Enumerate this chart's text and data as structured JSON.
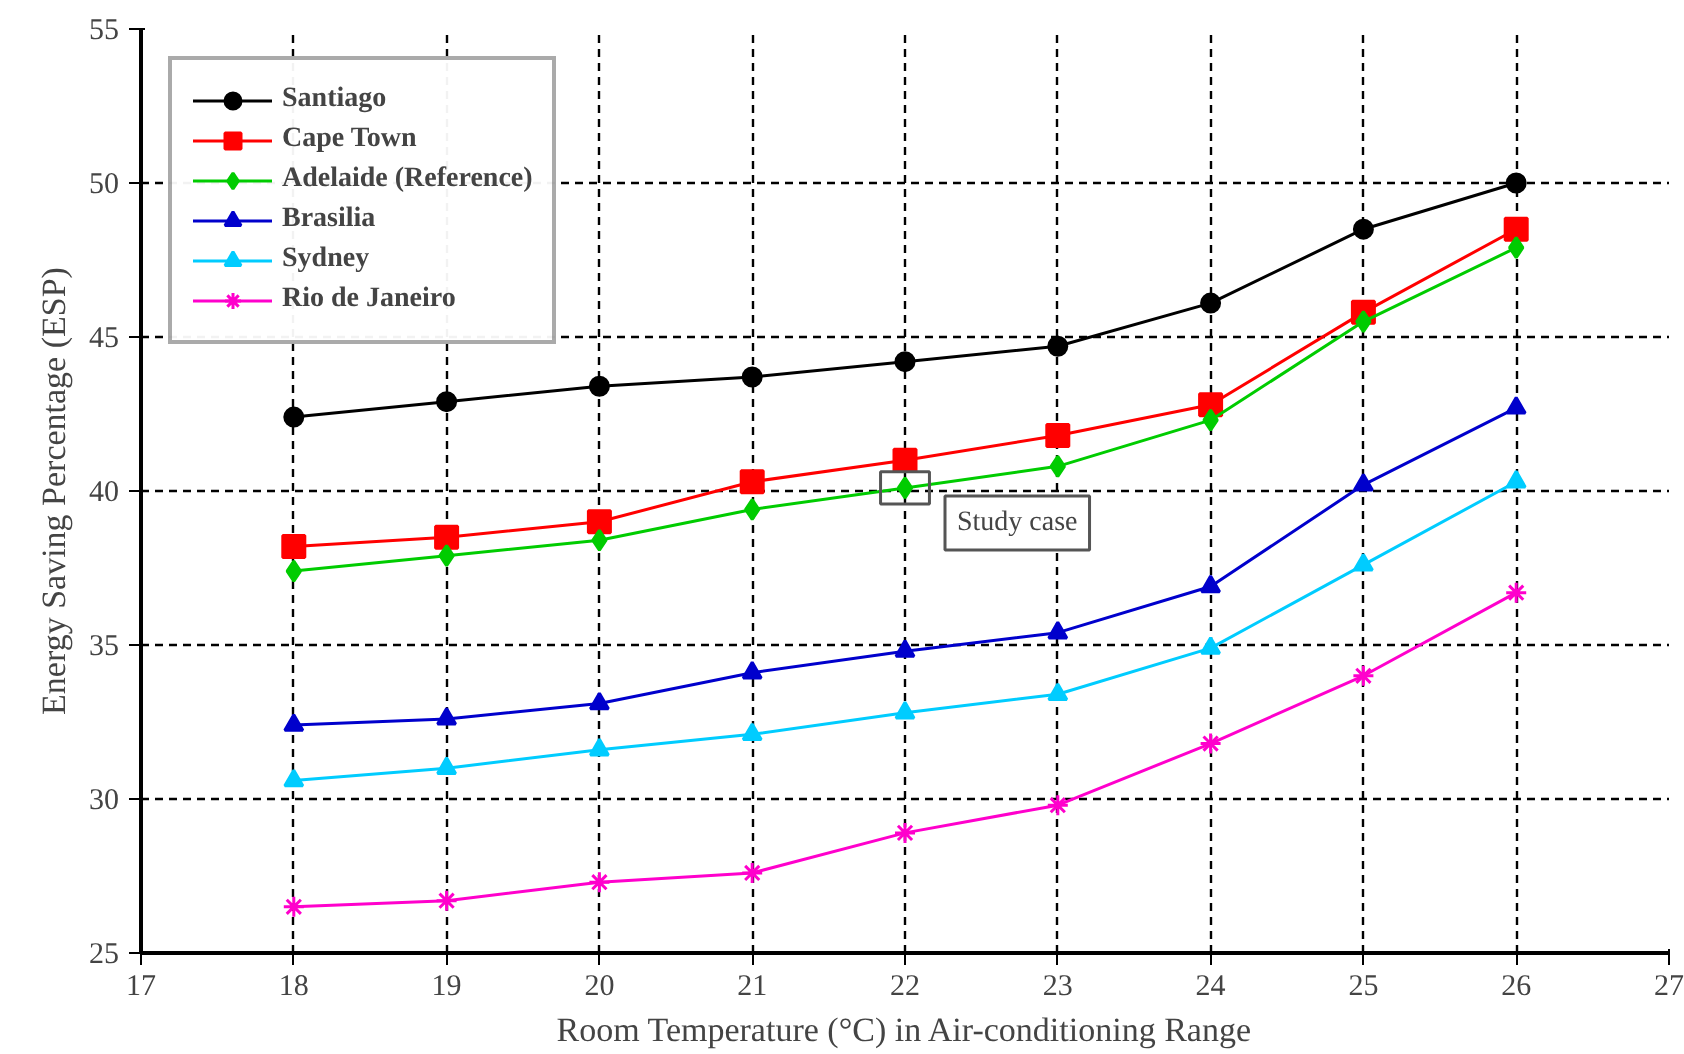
{
  "chart_data": {
    "type": "line",
    "xlabel": "Room Temperature (°C) in Air-conditioning Range",
    "ylabel": "Energy Saving Percentage (ESP)",
    "x": [
      18,
      19,
      20,
      21,
      22,
      23,
      24,
      25,
      26
    ],
    "xlim": [
      17,
      27
    ],
    "xticks": [
      17,
      18,
      19,
      20,
      21,
      22,
      23,
      24,
      25,
      26,
      27
    ],
    "ylim": [
      25,
      55
    ],
    "yticks": [
      25,
      30,
      35,
      40,
      45,
      50,
      55
    ],
    "grid": true,
    "legend": "top left",
    "line_style": "solid",
    "series": [
      {
        "name": "Santiago",
        "color": "#000000",
        "marker": "circle",
        "values": [
          42.4,
          42.9,
          43.4,
          43.7,
          44.2,
          44.7,
          46.1,
          48.5,
          50.0
        ]
      },
      {
        "name": "Cape Town",
        "color": "#ff0000",
        "marker": "square",
        "values": [
          38.2,
          38.5,
          39.0,
          40.3,
          41.0,
          41.8,
          42.8,
          45.8,
          48.5
        ]
      },
      {
        "name": "Adelaide (Reference)",
        "color": "#00cc00",
        "marker": "diamond",
        "values": [
          37.4,
          37.9,
          38.4,
          39.4,
          40.1,
          40.8,
          42.3,
          45.5,
          47.9
        ]
      },
      {
        "name": "Brasilia",
        "color": "#0000cc",
        "marker": "triangle",
        "values": [
          32.4,
          32.6,
          33.1,
          34.1,
          34.8,
          35.4,
          36.9,
          40.2,
          42.7
        ]
      },
      {
        "name": "Sydney",
        "color": "#00ccff",
        "marker": "triangle",
        "values": [
          30.6,
          31.0,
          31.6,
          32.1,
          32.8,
          33.4,
          34.9,
          37.6,
          40.3
        ]
      },
      {
        "name": "Rio de Janeiro",
        "color": "#ff00cc",
        "marker": "cross",
        "values": [
          26.5,
          26.7,
          27.3,
          27.6,
          28.9,
          29.8,
          31.8,
          34.0,
          36.7
        ]
      }
    ],
    "annotations": [
      {
        "text": "Study case",
        "x": 22,
        "y": 40.1
      }
    ]
  }
}
